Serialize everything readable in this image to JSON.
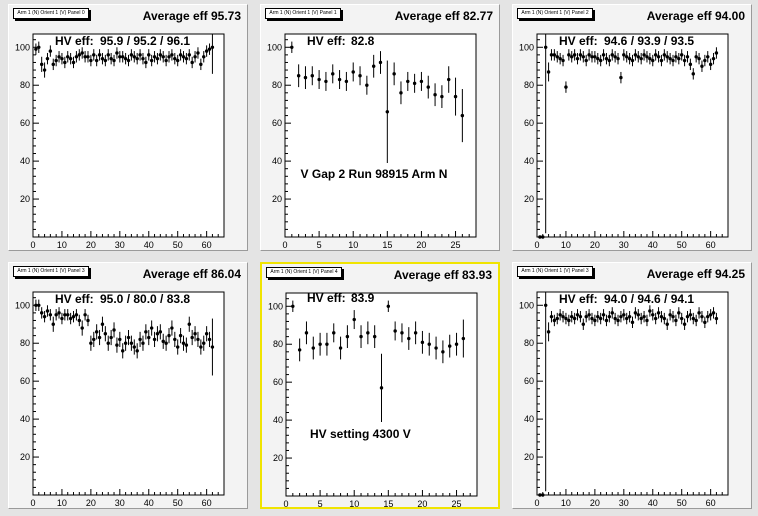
{
  "panels": [
    {
      "title": "Arm 1 (N) Orient 1 (V) Panel 0",
      "average": "Average eff 95.73",
      "hv_label": "HV eff:",
      "hv_value": "95.9 / 95.2 / 96.1",
      "annotation": "",
      "selected": false
    },
    {
      "title": "Arm 1 (N) Orient 1 (V) Panel 1",
      "average": "Average eff 82.77",
      "hv_label": "HV eff:",
      "hv_value": "82.8",
      "annotation": "V Gap 2 Run 98915 Arm N",
      "selected": false
    },
    {
      "title": "Arm 1 (N) Orient 1 (V) Panel 2",
      "average": "Average eff 94.00",
      "hv_label": "HV eff:",
      "hv_value": "94.6 / 93.9 / 93.5",
      "annotation": "",
      "selected": false
    },
    {
      "title": "Arm 1 (N) Orient 1 (V) Panel 3",
      "average": "Average eff 86.04",
      "hv_label": "HV eff:",
      "hv_value": "95.0 / 80.0 / 83.8",
      "annotation": "",
      "selected": false
    },
    {
      "title": "Arm 1 (N) Orient 1 (V) Panel 4",
      "average": "Average eff 83.93",
      "hv_label": "HV eff:",
      "hv_value": "83.9",
      "annotation": "HV setting 4300 V",
      "selected": true
    },
    {
      "title": "Arm 1 (N) Orient 1 (V) Panel 3",
      "average": "Average eff 94.25",
      "hv_label": "HV eff:",
      "hv_value": "94.0 / 94.6 / 94.1",
      "annotation": "",
      "selected": false
    }
  ],
  "chart_data": [
    {
      "type": "scatter",
      "xlim": [
        0,
        66
      ],
      "ylim": [
        0,
        107
      ],
      "xticks": [
        0,
        10,
        20,
        30,
        40,
        50,
        60
      ],
      "yticks": [
        20,
        40,
        60,
        80,
        100
      ],
      "x": [
        1,
        2,
        3,
        4,
        5,
        6,
        7,
        8,
        9,
        10,
        11,
        12,
        13,
        14,
        15,
        16,
        17,
        18,
        19,
        20,
        21,
        22,
        23,
        24,
        25,
        26,
        27,
        28,
        29,
        30,
        31,
        32,
        33,
        34,
        35,
        36,
        37,
        38,
        39,
        40,
        41,
        42,
        43,
        44,
        45,
        46,
        47,
        48,
        49,
        50,
        51,
        52,
        53,
        54,
        55,
        56,
        57,
        58,
        59,
        60,
        61,
        62
      ],
      "y": [
        99,
        100,
        91,
        88,
        94,
        98,
        91,
        93,
        95,
        94,
        92,
        95,
        94,
        92,
        95,
        96,
        97,
        95,
        95,
        93,
        96,
        93,
        96,
        94,
        93,
        96,
        94,
        93,
        97,
        95,
        95,
        94,
        93,
        96,
        95,
        94,
        96,
        94,
        92,
        96,
        93,
        95,
        94,
        96,
        95,
        93,
        95,
        96,
        94,
        93,
        96,
        95,
        94,
        96,
        92,
        95,
        97,
        91,
        95,
        98,
        99,
        100
      ],
      "err": [
        3,
        3,
        4,
        4,
        3,
        3,
        3,
        3,
        3,
        3,
        3,
        3,
        3,
        3,
        3,
        3,
        3,
        3,
        3,
        3,
        3,
        3,
        3,
        3,
        3,
        3,
        3,
        3,
        3,
        3,
        3,
        3,
        3,
        3,
        3,
        3,
        3,
        3,
        3,
        3,
        3,
        3,
        3,
        3,
        3,
        3,
        3,
        3,
        3,
        3,
        3,
        3,
        3,
        3,
        3,
        3,
        3,
        3,
        3,
        3,
        3,
        14
      ]
    },
    {
      "type": "scatter",
      "xlim": [
        0,
        28
      ],
      "ylim": [
        0,
        107
      ],
      "xticks": [
        0,
        5,
        10,
        15,
        20,
        25
      ],
      "yticks": [
        20,
        40,
        60,
        80,
        100
      ],
      "x": [
        1,
        2,
        3,
        4,
        5,
        6,
        7,
        8,
        9,
        10,
        11,
        12,
        13,
        14,
        15,
        16,
        17,
        18,
        19,
        20,
        21,
        22,
        23,
        24,
        25,
        26
      ],
      "y": [
        100,
        85,
        84,
        85,
        83,
        82,
        86,
        83,
        82,
        87,
        85,
        80,
        90,
        92,
        66,
        86,
        76,
        82,
        81,
        82,
        79,
        75,
        74,
        83,
        74,
        64
      ],
      "err": [
        3,
        6,
        6,
        5,
        5,
        5,
        5,
        5,
        5,
        5,
        5,
        5,
        6,
        6,
        27,
        6,
        6,
        5,
        5,
        5,
        6,
        6,
        6,
        7,
        10,
        14
      ]
    },
    {
      "type": "scatter",
      "xlim": [
        0,
        66
      ],
      "ylim": [
        0,
        107
      ],
      "xticks": [
        0,
        10,
        20,
        30,
        40,
        50,
        60
      ],
      "yticks": [
        20,
        40,
        60,
        80,
        100
      ],
      "x": [
        1,
        2,
        3,
        4,
        5,
        6,
        7,
        8,
        9,
        10,
        11,
        12,
        13,
        14,
        15,
        16,
        17,
        18,
        19,
        20,
        21,
        22,
        23,
        24,
        25,
        26,
        27,
        28,
        29,
        30,
        31,
        32,
        33,
        34,
        35,
        36,
        37,
        38,
        39,
        40,
        41,
        42,
        43,
        44,
        45,
        46,
        47,
        48,
        49,
        50,
        51,
        52,
        53,
        54,
        55,
        56,
        57,
        58,
        59,
        60,
        61,
        62
      ],
      "y": [
        0,
        0,
        100,
        87,
        96,
        96,
        95,
        94,
        93,
        79,
        96,
        95,
        96,
        94,
        96,
        95,
        93,
        96,
        95,
        95,
        94,
        93,
        96,
        94,
        93,
        96,
        95,
        94,
        84,
        96,
        95,
        94,
        93,
        96,
        95,
        94,
        96,
        95,
        94,
        93,
        96,
        95,
        93,
        96,
        95,
        94,
        93,
        95,
        94,
        96,
        93,
        95,
        91,
        86,
        95,
        94,
        90,
        93,
        95,
        91,
        94,
        97
      ],
      "err": [
        0,
        0,
        98,
        5,
        3,
        3,
        3,
        3,
        3,
        3,
        3,
        3,
        3,
        3,
        3,
        3,
        3,
        3,
        3,
        3,
        3,
        3,
        3,
        3,
        3,
        3,
        3,
        3,
        3,
        3,
        3,
        3,
        3,
        3,
        3,
        3,
        3,
        3,
        3,
        3,
        3,
        3,
        3,
        3,
        3,
        3,
        3,
        3,
        3,
        3,
        3,
        3,
        3,
        3,
        3,
        3,
        3,
        3,
        3,
        3,
        3,
        3
      ]
    },
    {
      "type": "scatter",
      "xlim": [
        0,
        66
      ],
      "ylim": [
        0,
        107
      ],
      "xticks": [
        0,
        10,
        20,
        30,
        40,
        50,
        60
      ],
      "yticks": [
        20,
        40,
        60,
        80,
        100
      ],
      "x": [
        1,
        2,
        3,
        4,
        5,
        6,
        7,
        8,
        9,
        10,
        11,
        12,
        13,
        14,
        15,
        16,
        17,
        18,
        19,
        20,
        21,
        22,
        23,
        24,
        25,
        26,
        27,
        28,
        29,
        30,
        31,
        32,
        33,
        34,
        35,
        36,
        37,
        38,
        39,
        40,
        41,
        42,
        43,
        44,
        45,
        46,
        47,
        48,
        49,
        50,
        51,
        52,
        53,
        54,
        55,
        56,
        57,
        58,
        59,
        60,
        61,
        62
      ],
      "y": [
        100,
        100,
        96,
        94,
        97,
        95,
        90,
        95,
        96,
        93,
        95,
        95,
        93,
        94,
        95,
        92,
        88,
        95,
        92,
        80,
        82,
        86,
        83,
        90,
        85,
        80,
        83,
        87,
        79,
        82,
        76,
        80,
        83,
        80,
        78,
        76,
        82,
        80,
        86,
        83,
        88,
        82,
        85,
        86,
        81,
        80,
        84,
        88,
        82,
        78,
        84,
        80,
        79,
        90,
        83,
        85,
        82,
        78,
        80,
        85,
        82,
        78
      ],
      "err": [
        3,
        3,
        3,
        3,
        3,
        3,
        4,
        3,
        3,
        3,
        3,
        3,
        3,
        3,
        3,
        3,
        4,
        3,
        3,
        4,
        4,
        4,
        4,
        4,
        4,
        4,
        4,
        4,
        4,
        4,
        4,
        4,
        4,
        4,
        4,
        4,
        4,
        4,
        4,
        4,
        4,
        4,
        4,
        4,
        4,
        4,
        4,
        4,
        4,
        4,
        4,
        4,
        4,
        4,
        4,
        4,
        4,
        4,
        4,
        4,
        4,
        15
      ]
    },
    {
      "type": "scatter",
      "xlim": [
        0,
        28
      ],
      "ylim": [
        0,
        107
      ],
      "xticks": [
        0,
        5,
        10,
        15,
        20,
        25
      ],
      "yticks": [
        20,
        40,
        60,
        80,
        100
      ],
      "x": [
        1,
        2,
        3,
        4,
        5,
        6,
        7,
        8,
        9,
        10,
        11,
        12,
        13,
        14,
        15,
        16,
        17,
        18,
        19,
        20,
        21,
        22,
        23,
        24,
        25,
        26
      ],
      "y": [
        100,
        77,
        86,
        78,
        80,
        80,
        86,
        78,
        84,
        93,
        84,
        86,
        84,
        57,
        100,
        87,
        86,
        83,
        86,
        81,
        80,
        78,
        76,
        79,
        80,
        83
      ],
      "err": [
        3,
        6,
        6,
        6,
        6,
        6,
        5,
        6,
        6,
        5,
        6,
        6,
        6,
        18,
        3,
        5,
        5,
        6,
        6,
        6,
        6,
        6,
        6,
        6,
        6,
        10
      ]
    },
    {
      "type": "scatter",
      "xlim": [
        0,
        66
      ],
      "ylim": [
        0,
        107
      ],
      "xticks": [
        0,
        10,
        20,
        30,
        40,
        50,
        60
      ],
      "yticks": [
        20,
        40,
        60,
        80,
        100
      ],
      "x": [
        1,
        2,
        3,
        4,
        5,
        6,
        7,
        8,
        9,
        10,
        11,
        12,
        13,
        14,
        15,
        16,
        17,
        18,
        19,
        20,
        21,
        22,
        23,
        24,
        25,
        26,
        27,
        28,
        29,
        30,
        31,
        32,
        33,
        34,
        35,
        36,
        37,
        38,
        39,
        40,
        41,
        42,
        43,
        44,
        45,
        46,
        47,
        48,
        49,
        50,
        51,
        52,
        53,
        54,
        55,
        56,
        57,
        58,
        59,
        60,
        61,
        62
      ],
      "y": [
        0,
        0,
        100,
        86,
        94,
        92,
        93,
        95,
        94,
        93,
        92,
        94,
        93,
        95,
        94,
        90,
        94,
        95,
        93,
        92,
        94,
        93,
        95,
        92,
        94,
        96,
        93,
        92,
        94,
        95,
        93,
        94,
        91,
        96,
        95,
        93,
        94,
        92,
        97,
        95,
        93,
        96,
        94,
        93,
        90,
        95,
        94,
        92,
        96,
        93,
        90,
        94,
        95,
        93,
        92,
        96,
        94,
        91,
        94,
        95,
        96,
        93
      ],
      "err": [
        0,
        0,
        98,
        5,
        3,
        3,
        3,
        3,
        3,
        3,
        3,
        3,
        3,
        3,
        3,
        3,
        3,
        3,
        3,
        3,
        3,
        3,
        3,
        3,
        3,
        3,
        3,
        3,
        3,
        3,
        3,
        3,
        3,
        3,
        3,
        3,
        3,
        3,
        3,
        3,
        3,
        3,
        3,
        3,
        3,
        3,
        3,
        3,
        3,
        3,
        3,
        3,
        3,
        3,
        3,
        3,
        3,
        3,
        3,
        3,
        3,
        3
      ]
    }
  ]
}
